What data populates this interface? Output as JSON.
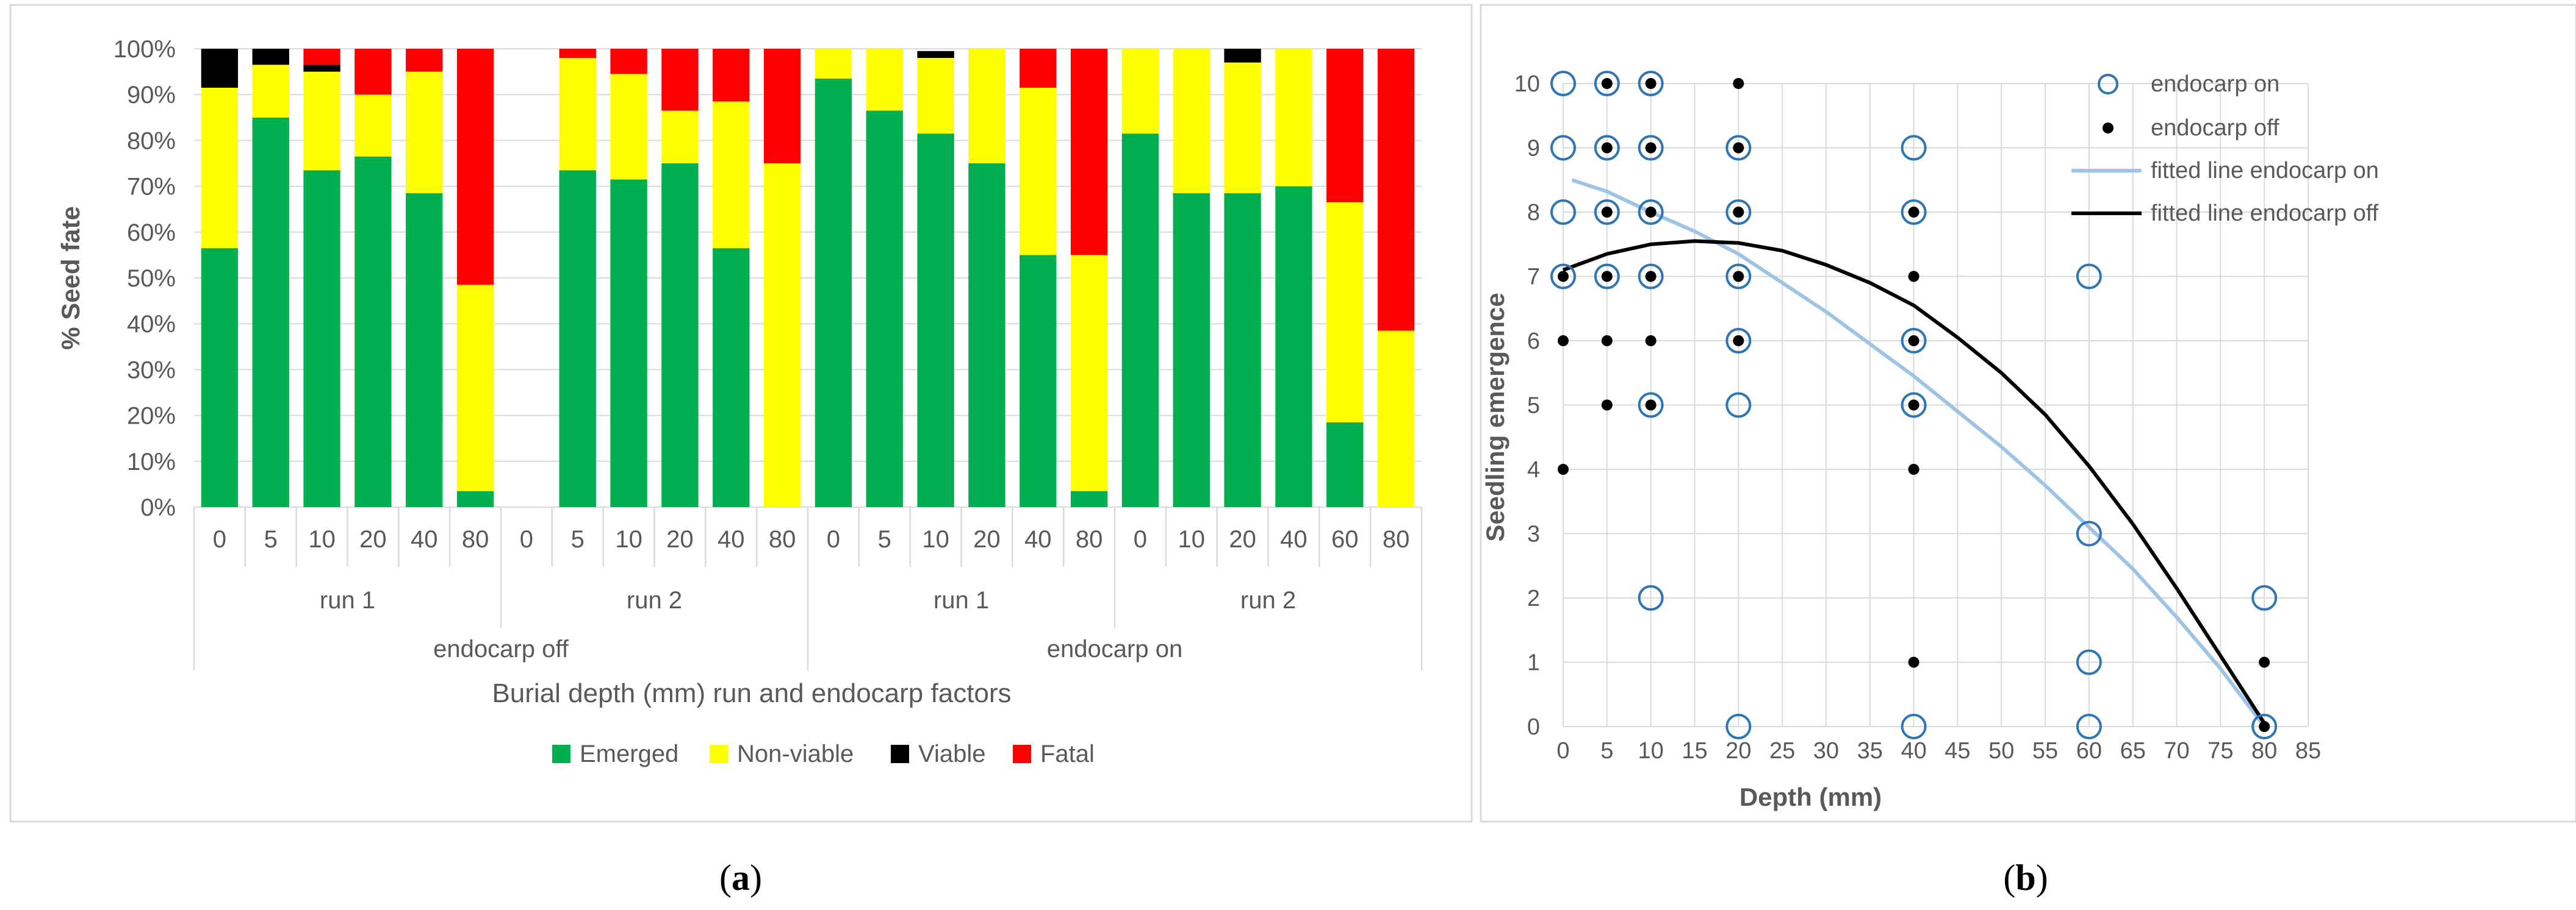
{
  "panels": {
    "a": {
      "label_prefix": "(",
      "label_letter": "a",
      "label_suffix": ")"
    },
    "b": {
      "label_prefix": "(",
      "label_letter": "b",
      "label_suffix": ")"
    }
  },
  "colors": {
    "emerged": "#00b050",
    "nonviable": "#ffff00",
    "viable": "#000000",
    "fatal": "#ff0000",
    "grid": "#d9d9d9",
    "axis_text": "#595959",
    "marker_on": "#2e75b6",
    "fit_on": "#9dc3e6",
    "fit_off": "#000000"
  },
  "chart_data": [
    {
      "type": "bar",
      "stacked": true,
      "title": "",
      "ylabel": "% Seed fate",
      "xlabel": "Burial depth (mm) run and endocarp factors",
      "ylim": [
        0,
        100
      ],
      "yticks": [
        "0%",
        "10%",
        "20%",
        "30%",
        "40%",
        "50%",
        "60%",
        "70%",
        "80%",
        "90%",
        "100%"
      ],
      "categories": [
        "0",
        "5",
        "10",
        "20",
        "40",
        "80",
        "0",
        "5",
        "10",
        "20",
        "40",
        "80",
        "0",
        "5",
        "10",
        "20",
        "40",
        "80",
        "0",
        "10",
        "20",
        "40",
        "60",
        "80"
      ],
      "run_groups": [
        {
          "label": "run 1",
          "from": 0,
          "to": 5
        },
        {
          "label": "run 2",
          "from": 6,
          "to": 11
        },
        {
          "label": "run 1",
          "from": 12,
          "to": 17
        },
        {
          "label": "run 2",
          "from": 18,
          "to": 23
        }
      ],
      "endocarp_groups": [
        {
          "label": "endocarp off",
          "from": 0,
          "to": 11
        },
        {
          "label": "endocarp on",
          "from": 12,
          "to": 23
        }
      ],
      "series": [
        {
          "name": "Emerged",
          "color_key": "emerged",
          "values": [
            56.5,
            85,
            73.5,
            76.5,
            68.5,
            3.5,
            null,
            73.5,
            71.5,
            75,
            56.5,
            0,
            93.5,
            86.5,
            81.5,
            75,
            55,
            3.5,
            81.5,
            68.5,
            68.5,
            70,
            18.5,
            0
          ]
        },
        {
          "name": "Non-viable",
          "color_key": "nonviable",
          "values": [
            35,
            11.5,
            21.5,
            13.5,
            26.5,
            45,
            null,
            24.5,
            23,
            11.5,
            32,
            75,
            6.5,
            13.5,
            16.5,
            25,
            36.5,
            51.5,
            18.5,
            31.5,
            28.5,
            30,
            48,
            38.5
          ]
        },
        {
          "name": "Viable",
          "color_key": "viable",
          "values": [
            8.5,
            3.5,
            1.5,
            0,
            0,
            0,
            null,
            0,
            0,
            0,
            0,
            0,
            0,
            0,
            1.5,
            0,
            0,
            0,
            0,
            0,
            3,
            0,
            0,
            0
          ]
        },
        {
          "name": "Fatal",
          "color_key": "fatal",
          "values": [
            0,
            0,
            3.5,
            10,
            5,
            51.5,
            null,
            2,
            5.5,
            13.5,
            11.5,
            25,
            0,
            0,
            0,
            0,
            8.5,
            45,
            0,
            0,
            0,
            0,
            33.5,
            61.5
          ]
        }
      ],
      "legend": [
        "Emerged",
        "Non-viable",
        "Viable",
        "Fatal"
      ],
      "legend_position": "bottom"
    },
    {
      "type": "scatter",
      "title": "",
      "xlabel": "Depth (mm)",
      "ylabel": "Seedling emergence",
      "xlim": [
        0,
        85
      ],
      "ylim": [
        0,
        10
      ],
      "xticks": [
        0,
        5,
        10,
        15,
        20,
        25,
        30,
        35,
        40,
        45,
        50,
        55,
        60,
        65,
        70,
        75,
        80,
        85
      ],
      "yticks": [
        0,
        1,
        2,
        3,
        4,
        5,
        6,
        7,
        8,
        9,
        10
      ],
      "series": [
        {
          "name": "endocarp on",
          "marker": "open-circle",
          "points": [
            [
              0,
              10
            ],
            [
              0,
              9
            ],
            [
              0,
              8
            ],
            [
              0,
              7
            ],
            [
              5,
              10
            ],
            [
              5,
              9
            ],
            [
              5,
              8
            ],
            [
              5,
              7
            ],
            [
              10,
              10
            ],
            [
              10,
              9
            ],
            [
              10,
              8
            ],
            [
              10,
              7
            ],
            [
              10,
              5
            ],
            [
              10,
              2
            ],
            [
              20,
              9
            ],
            [
              20,
              8
            ],
            [
              20,
              7
            ],
            [
              20,
              6
            ],
            [
              20,
              5
            ],
            [
              20,
              0
            ],
            [
              40,
              9
            ],
            [
              40,
              8
            ],
            [
              40,
              6
            ],
            [
              40,
              5
            ],
            [
              40,
              0
            ],
            [
              60,
              7
            ],
            [
              60,
              3
            ],
            [
              60,
              1
            ],
            [
              60,
              0
            ],
            [
              80,
              2
            ],
            [
              80,
              0
            ]
          ]
        },
        {
          "name": "endocarp off",
          "marker": "dot",
          "points": [
            [
              0,
              7
            ],
            [
              0,
              6
            ],
            [
              0,
              4
            ],
            [
              5,
              10
            ],
            [
              5,
              9
            ],
            [
              5,
              8
            ],
            [
              5,
              7
            ],
            [
              5,
              6
            ],
            [
              5,
              5
            ],
            [
              10,
              10
            ],
            [
              10,
              9
            ],
            [
              10,
              8
            ],
            [
              10,
              7
            ],
            [
              10,
              6
            ],
            [
              10,
              5
            ],
            [
              20,
              10
            ],
            [
              20,
              9
            ],
            [
              20,
              8
            ],
            [
              20,
              7
            ],
            [
              20,
              6
            ],
            [
              40,
              8
            ],
            [
              40,
              7
            ],
            [
              40,
              6
            ],
            [
              40,
              5
            ],
            [
              40,
              4
            ],
            [
              40,
              1
            ],
            [
              80,
              1
            ],
            [
              80,
              0
            ]
          ]
        },
        {
          "name": "fitted line endocarp on",
          "marker": "line",
          "points": [
            [
              1,
              8.5
            ],
            [
              5,
              8.32
            ],
            [
              10,
              8.0
            ],
            [
              15,
              7.7
            ],
            [
              20,
              7.35
            ],
            [
              25,
              6.9
            ],
            [
              30,
              6.45
            ],
            [
              35,
              5.95
            ],
            [
              40,
              5.45
            ],
            [
              45,
              4.9
            ],
            [
              50,
              4.35
            ],
            [
              55,
              3.75
            ],
            [
              60,
              3.1
            ],
            [
              65,
              2.45
            ],
            [
              70,
              1.7
            ],
            [
              75,
              0.9
            ],
            [
              80,
              0.0
            ]
          ]
        },
        {
          "name": "fitted line endocarp off",
          "marker": "line",
          "points": [
            [
              0,
              7.1
            ],
            [
              5,
              7.35
            ],
            [
              10,
              7.5
            ],
            [
              15,
              7.55
            ],
            [
              20,
              7.52
            ],
            [
              25,
              7.4
            ],
            [
              30,
              7.18
            ],
            [
              35,
              6.9
            ],
            [
              40,
              6.55
            ],
            [
              45,
              6.05
            ],
            [
              50,
              5.5
            ],
            [
              55,
              4.85
            ],
            [
              60,
              4.05
            ],
            [
              65,
              3.15
            ],
            [
              70,
              2.15
            ],
            [
              75,
              1.1
            ],
            [
              80,
              0.05
            ]
          ]
        }
      ],
      "legend": [
        "endocarp on",
        "endocarp off",
        "fitted line endocarp on",
        "fitted line endocarp off"
      ],
      "legend_position": "top-right"
    }
  ]
}
